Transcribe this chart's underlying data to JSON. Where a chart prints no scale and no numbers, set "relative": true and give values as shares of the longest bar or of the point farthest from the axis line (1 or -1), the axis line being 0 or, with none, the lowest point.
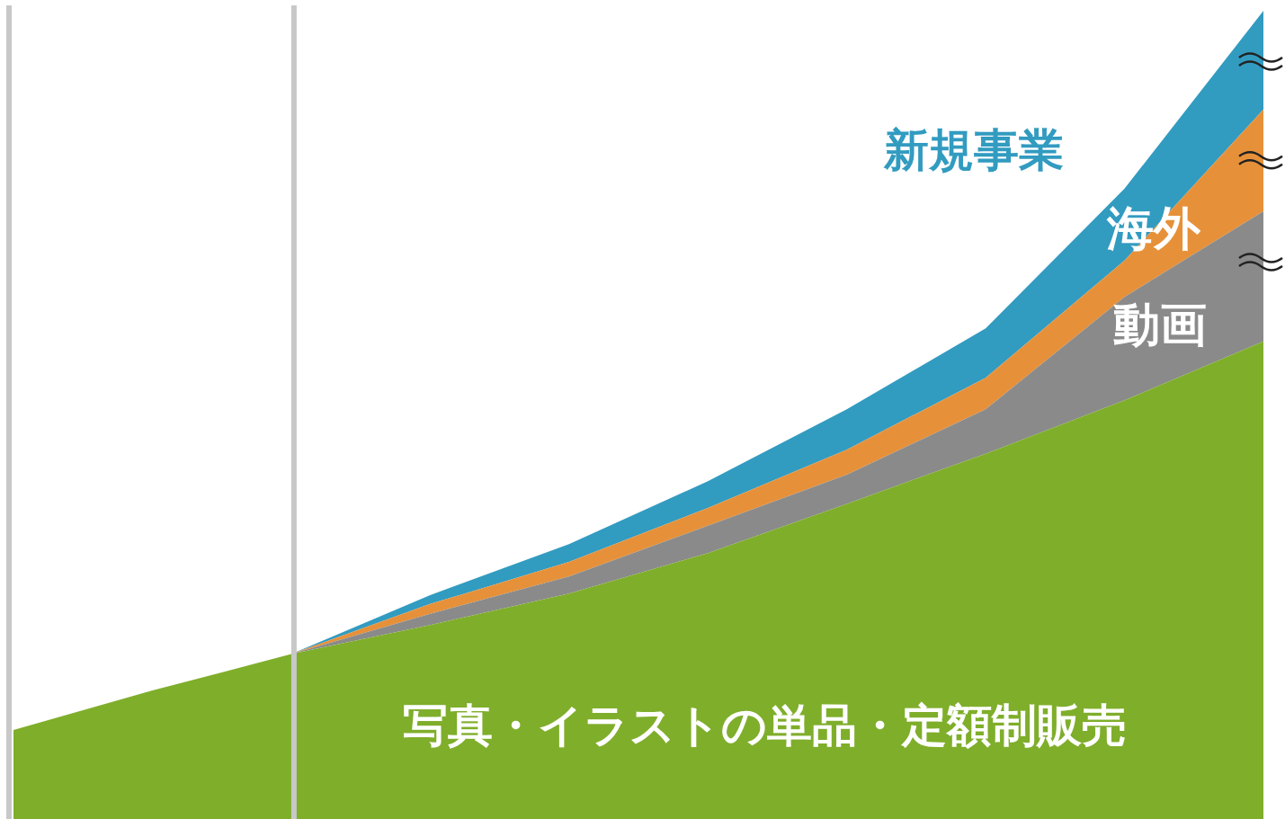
{
  "chart_data": {
    "type": "area",
    "stacked": true,
    "relative": true,
    "categories": [
      null,
      null,
      null,
      null,
      null,
      null,
      null,
      null,
      null,
      null
    ],
    "series": [
      {
        "name": "写真・イラストの単品・定額制販売",
        "color": "#7fae2b",
        "values": [
          0.11,
          0.159,
          0.204,
          0.24,
          0.279,
          0.329,
          0.39,
          0.452,
          0.518,
          0.591
        ]
      },
      {
        "name": "動画",
        "color": "#8a8a8a",
        "values": [
          null,
          null,
          0,
          0.014,
          0.021,
          0.034,
          0.036,
          0.055,
          0.128,
          0.161
        ]
      },
      {
        "name": "海外",
        "color": "#e6913a",
        "values": [
          null,
          null,
          0,
          0.012,
          0.018,
          0.022,
          0.031,
          0.039,
          0.045,
          0.126
        ]
      },
      {
        "name": "新規事業",
        "color": "#329bc0",
        "values": [
          null,
          null,
          0,
          0.011,
          0.022,
          0.033,
          0.05,
          0.061,
          0.089,
          0.122
        ]
      }
    ]
  }
}
